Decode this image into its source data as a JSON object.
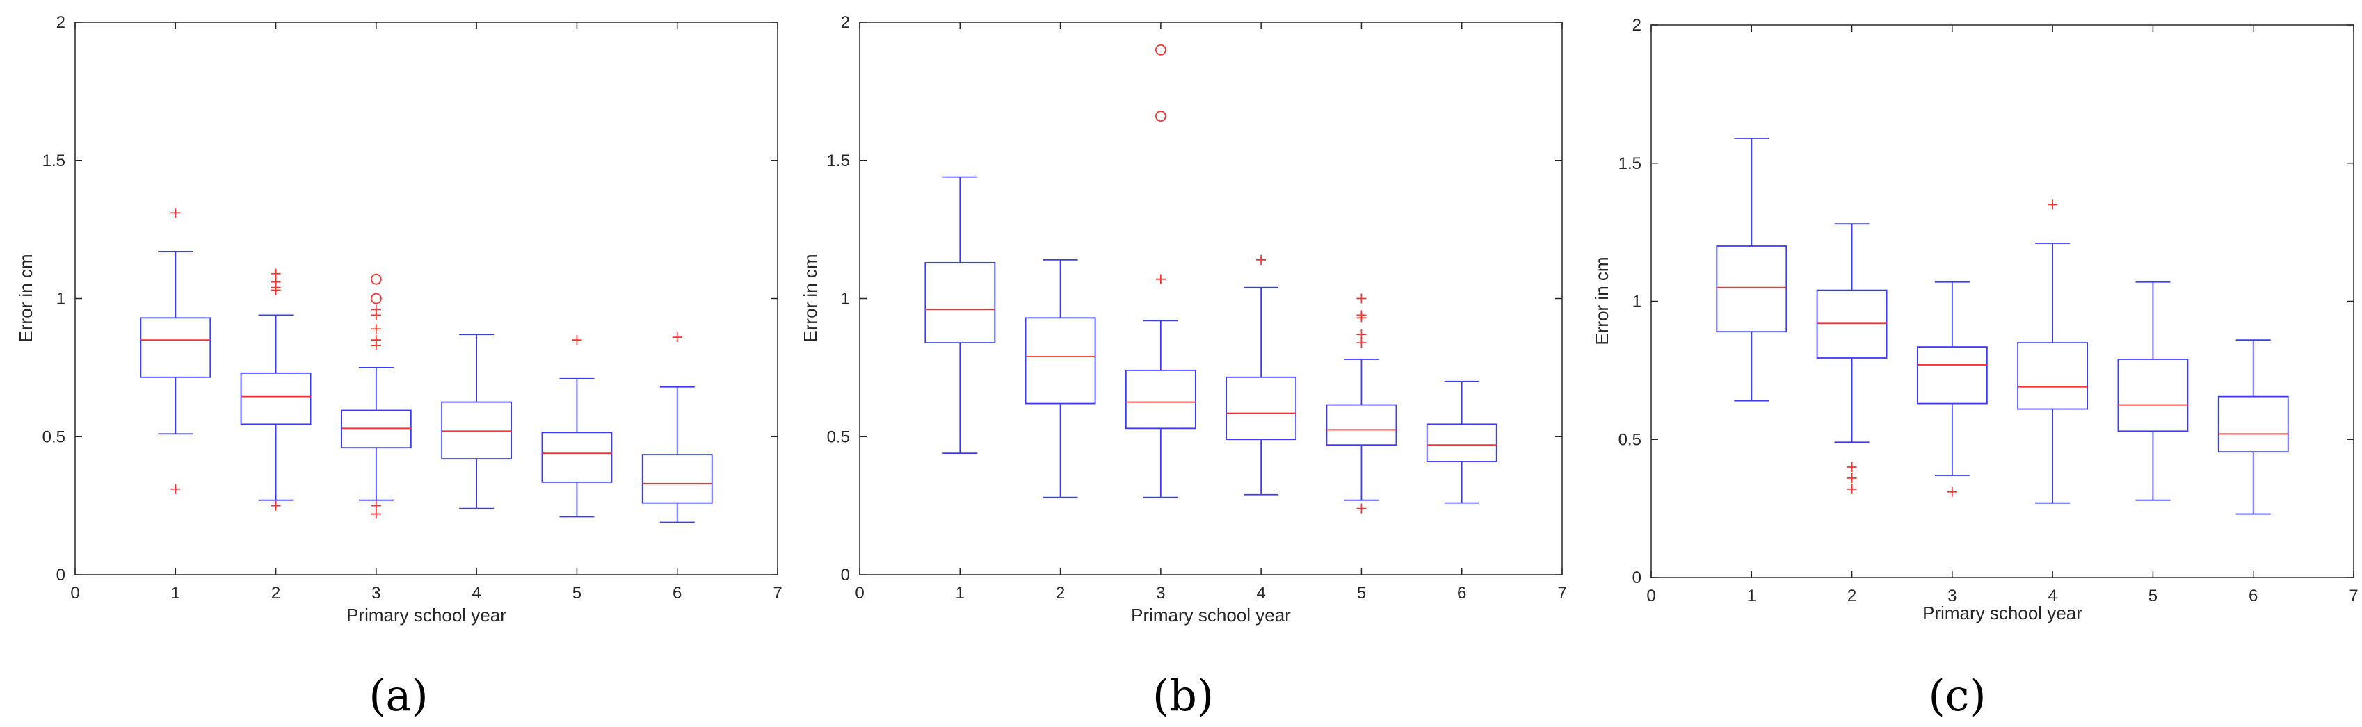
{
  "colors": {
    "box": "#3b3bff",
    "median": "#ff3030",
    "outlier": "#ff3030",
    "axes": "#262626"
  },
  "chart_data": [
    {
      "panel_label": "(a)",
      "type": "boxplot",
      "xlabel": "Primary school year",
      "ylabel": "Error in cm",
      "xlim": [
        0,
        7
      ],
      "ylim": [
        0,
        2
      ],
      "xticks": [
        "0",
        "1",
        "2",
        "3",
        "4",
        "5",
        "6",
        "7"
      ],
      "yticks": [
        "0",
        "0.5",
        "1",
        "1.5",
        "2"
      ],
      "boxes": [
        {
          "x": 1,
          "whisker_low": 0.51,
          "q1": 0.715,
          "median": 0.85,
          "q3": 0.93,
          "whisker_high": 1.17,
          "outliers_plus": [
            1.31,
            0.31
          ],
          "outliers_circle": []
        },
        {
          "x": 2,
          "whisker_low": 0.27,
          "q1": 0.545,
          "median": 0.645,
          "q3": 0.73,
          "whisker_high": 0.94,
          "outliers_plus": [
            1.09,
            1.06,
            1.04,
            1.03,
            0.25
          ],
          "outliers_circle": []
        },
        {
          "x": 3,
          "whisker_low": 0.27,
          "q1": 0.46,
          "median": 0.53,
          "q3": 0.595,
          "whisker_high": 0.75,
          "outliers_plus": [
            0.96,
            0.94,
            0.89,
            0.85,
            0.83,
            0.25,
            0.22
          ],
          "outliers_circle": [
            1.07,
            1.0
          ]
        },
        {
          "x": 4,
          "whisker_low": 0.24,
          "q1": 0.42,
          "median": 0.52,
          "q3": 0.625,
          "whisker_high": 0.87,
          "outliers_plus": [],
          "outliers_circle": []
        },
        {
          "x": 5,
          "whisker_low": 0.21,
          "q1": 0.335,
          "median": 0.44,
          "q3": 0.515,
          "whisker_high": 0.71,
          "outliers_plus": [
            0.85
          ],
          "outliers_circle": []
        },
        {
          "x": 6,
          "whisker_low": 0.19,
          "q1": 0.26,
          "median": 0.33,
          "q3": 0.435,
          "whisker_high": 0.68,
          "outliers_plus": [
            0.86
          ],
          "outliers_circle": []
        }
      ]
    },
    {
      "panel_label": "(b)",
      "type": "boxplot",
      "xlabel": "Primary school year",
      "ylabel": "Error in cm",
      "xlim": [
        0,
        7
      ],
      "ylim": [
        0,
        2
      ],
      "xticks": [
        "0",
        "1",
        "2",
        "3",
        "4",
        "5",
        "6",
        "7"
      ],
      "yticks": [
        "0",
        "0.5",
        "1",
        "1.5",
        "2"
      ],
      "boxes": [
        {
          "x": 1,
          "whisker_low": 0.44,
          "q1": 0.84,
          "median": 0.96,
          "q3": 1.13,
          "whisker_high": 1.44,
          "outliers_plus": [],
          "outliers_circle": []
        },
        {
          "x": 2,
          "whisker_low": 0.28,
          "q1": 0.62,
          "median": 0.79,
          "q3": 0.93,
          "whisker_high": 1.14,
          "outliers_plus": [],
          "outliers_circle": []
        },
        {
          "x": 3,
          "whisker_low": 0.28,
          "q1": 0.53,
          "median": 0.625,
          "q3": 0.74,
          "whisker_high": 0.92,
          "outliers_plus": [
            1.07
          ],
          "outliers_circle": [
            1.9,
            1.66
          ]
        },
        {
          "x": 4,
          "whisker_low": 0.29,
          "q1": 0.49,
          "median": 0.585,
          "q3": 0.715,
          "whisker_high": 1.04,
          "outliers_plus": [
            1.14
          ],
          "outliers_circle": []
        },
        {
          "x": 5,
          "whisker_low": 0.27,
          "q1": 0.47,
          "median": 0.525,
          "q3": 0.615,
          "whisker_high": 0.78,
          "outliers_plus": [
            1.0,
            0.94,
            0.93,
            0.87,
            0.84,
            0.24
          ],
          "outliers_circle": []
        },
        {
          "x": 6,
          "whisker_low": 0.26,
          "q1": 0.41,
          "median": 0.47,
          "q3": 0.545,
          "whisker_high": 0.7,
          "outliers_plus": [],
          "outliers_circle": []
        }
      ]
    },
    {
      "panel_label": "(c)",
      "type": "boxplot",
      "xlabel": "Primary school year",
      "ylabel": "Error in cm",
      "xlim": [
        0,
        7
      ],
      "ylim": [
        0,
        2
      ],
      "xticks": [
        "0",
        "1",
        "2",
        "3",
        "4",
        "5",
        "6",
        "7"
      ],
      "yticks": [
        "0",
        "0.5",
        "1",
        "1.5",
        "2"
      ],
      "boxes": [
        {
          "x": 1,
          "whisker_low": 0.64,
          "q1": 0.89,
          "median": 1.05,
          "q3": 1.2,
          "whisker_high": 1.59,
          "outliers_plus": [],
          "outliers_circle": []
        },
        {
          "x": 2,
          "whisker_low": 0.49,
          "q1": 0.795,
          "median": 0.92,
          "q3": 1.04,
          "whisker_high": 1.28,
          "outliers_plus": [
            0.4,
            0.36,
            0.32
          ],
          "outliers_circle": []
        },
        {
          "x": 3,
          "whisker_low": 0.37,
          "q1": 0.63,
          "median": 0.77,
          "q3": 0.835,
          "whisker_high": 1.07,
          "outliers_plus": [
            0.31
          ],
          "outliers_circle": []
        },
        {
          "x": 4,
          "whisker_low": 0.27,
          "q1": 0.61,
          "median": 0.69,
          "q3": 0.85,
          "whisker_high": 1.21,
          "outliers_plus": [
            1.35
          ],
          "outliers_circle": []
        },
        {
          "x": 5,
          "whisker_low": 0.28,
          "q1": 0.53,
          "median": 0.625,
          "q3": 0.79,
          "whisker_high": 1.07,
          "outliers_plus": [],
          "outliers_circle": []
        },
        {
          "x": 6,
          "whisker_low": 0.23,
          "q1": 0.455,
          "median": 0.52,
          "q3": 0.655,
          "whisker_high": 0.86,
          "outliers_plus": [],
          "outliers_circle": []
        }
      ]
    }
  ]
}
